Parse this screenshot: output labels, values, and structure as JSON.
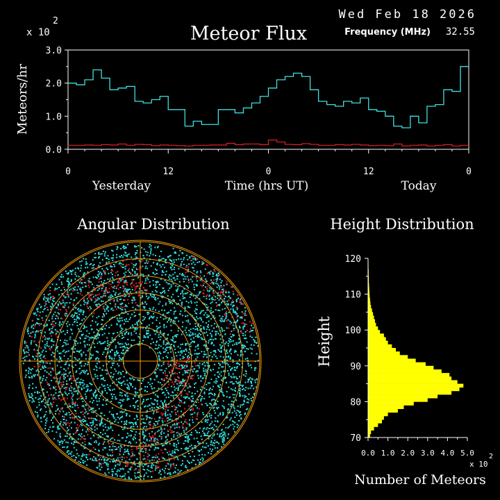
{
  "header": {
    "date": "Wed Feb 18 2026",
    "frequency_label": "Frequency (MHz)",
    "frequency_value": "32.55"
  },
  "colors": {
    "background": "#000000",
    "axis": "#ffffff",
    "flux_line": "#40e0e0",
    "background_line": "#d02020",
    "grid_ring": "#e0a020",
    "grid_axis": "#ff9900",
    "angular_point": "#30e0e0",
    "angular_point_alt": "#e02020",
    "histogram": "#ffff00"
  },
  "chart_data": [
    {
      "type": "line",
      "title": "Meteor Flux",
      "xlabel": "Time (hrs UT)",
      "ylabel": "Meteors/hr",
      "y_multiplier": "x 10",
      "y_multiplier_exp": "2",
      "xlim": [
        0,
        48
      ],
      "ylim": [
        0,
        3.0
      ],
      "y_ticks": [
        "0.0",
        "1.0",
        "2.0",
        "3.0"
      ],
      "x_ticks": [
        {
          "value": 0,
          "label": "0"
        },
        {
          "value": 12,
          "label": "12"
        },
        {
          "value": 24,
          "label": "0"
        },
        {
          "value": 36,
          "label": "12"
        },
        {
          "value": 48,
          "label": "0"
        }
      ],
      "day_labels": [
        "Yesterday",
        "Today"
      ],
      "step": "post",
      "series": [
        {
          "color": "#40e0e0",
          "values": [
            2.0,
            1.95,
            2.1,
            2.4,
            2.15,
            1.8,
            1.85,
            1.9,
            1.45,
            1.4,
            1.5,
            1.6,
            1.2,
            1.2,
            0.7,
            0.85,
            0.75,
            0.75,
            1.2,
            1.2,
            1.1,
            1.25,
            1.4,
            1.6,
            1.85,
            2.1,
            2.2,
            2.3,
            2.2,
            1.8,
            1.45,
            1.35,
            1.3,
            1.45,
            1.4,
            1.55,
            1.2,
            1.15,
            1.0,
            0.7,
            0.65,
            1.0,
            0.8,
            1.3,
            1.35,
            1.8,
            1.75,
            2.5
          ]
        },
        {
          "color": "#d02020",
          "values": [
            0.12,
            0.12,
            0.13,
            0.12,
            0.14,
            0.13,
            0.16,
            0.12,
            0.15,
            0.14,
            0.11,
            0.13,
            0.12,
            0.11,
            0.1,
            0.12,
            0.12,
            0.13,
            0.13,
            0.18,
            0.14,
            0.16,
            0.16,
            0.14,
            0.28,
            0.22,
            0.15,
            0.14,
            0.17,
            0.15,
            0.12,
            0.12,
            0.14,
            0.13,
            0.15,
            0.13,
            0.11,
            0.12,
            0.11,
            0.16,
            0.1,
            0.12,
            0.13,
            0.1,
            0.12,
            0.14,
            0.1,
            0.12
          ]
        }
      ]
    },
    {
      "type": "scatter",
      "title": "Angular Distribution",
      "projection": "polar",
      "rings": 7,
      "point_count_main": 4200,
      "point_count_alt": 650
    },
    {
      "type": "bar",
      "orientation": "horizontal",
      "title": "Height Distribution",
      "xlabel": "Number of Meteors",
      "ylabel": "Height",
      "x_multiplier": "x 10",
      "x_multiplier_exp": "2",
      "xlim": [
        0,
        5.0
      ],
      "ylim": [
        70,
        120
      ],
      "x_ticks": [
        "0.0",
        "1.0",
        "2.0",
        "3.0",
        "4.0",
        "5.0"
      ],
      "y_ticks": [
        "70",
        "80",
        "90",
        "100",
        "110",
        "120"
      ],
      "bin_width": 1,
      "heights": [
        70,
        71,
        72,
        73,
        74,
        75,
        76,
        77,
        78,
        79,
        80,
        81,
        82,
        83,
        84,
        85,
        86,
        87,
        88,
        89,
        90,
        91,
        92,
        93,
        94,
        95,
        96,
        97,
        98,
        99,
        100,
        101,
        102,
        103,
        104,
        105,
        106,
        107,
        108,
        109,
        110,
        111,
        112,
        113,
        114,
        115,
        116,
        117,
        118,
        119
      ],
      "values": [
        0.1,
        0.15,
        0.3,
        0.5,
        0.7,
        0.8,
        1.0,
        1.5,
        1.8,
        2.3,
        3.0,
        3.5,
        4.2,
        4.6,
        4.8,
        4.5,
        4.2,
        4.1,
        3.7,
        3.3,
        2.9,
        2.4,
        2.0,
        1.6,
        1.4,
        1.2,
        1.0,
        0.9,
        0.8,
        0.6,
        0.5,
        0.4,
        0.35,
        0.3,
        0.25,
        0.2,
        0.15,
        0.12,
        0.1,
        0.08,
        0.07,
        0.06,
        0.05,
        0.04,
        0.04,
        0.03,
        0.03,
        0.02,
        0.02,
        0.01
      ]
    }
  ]
}
